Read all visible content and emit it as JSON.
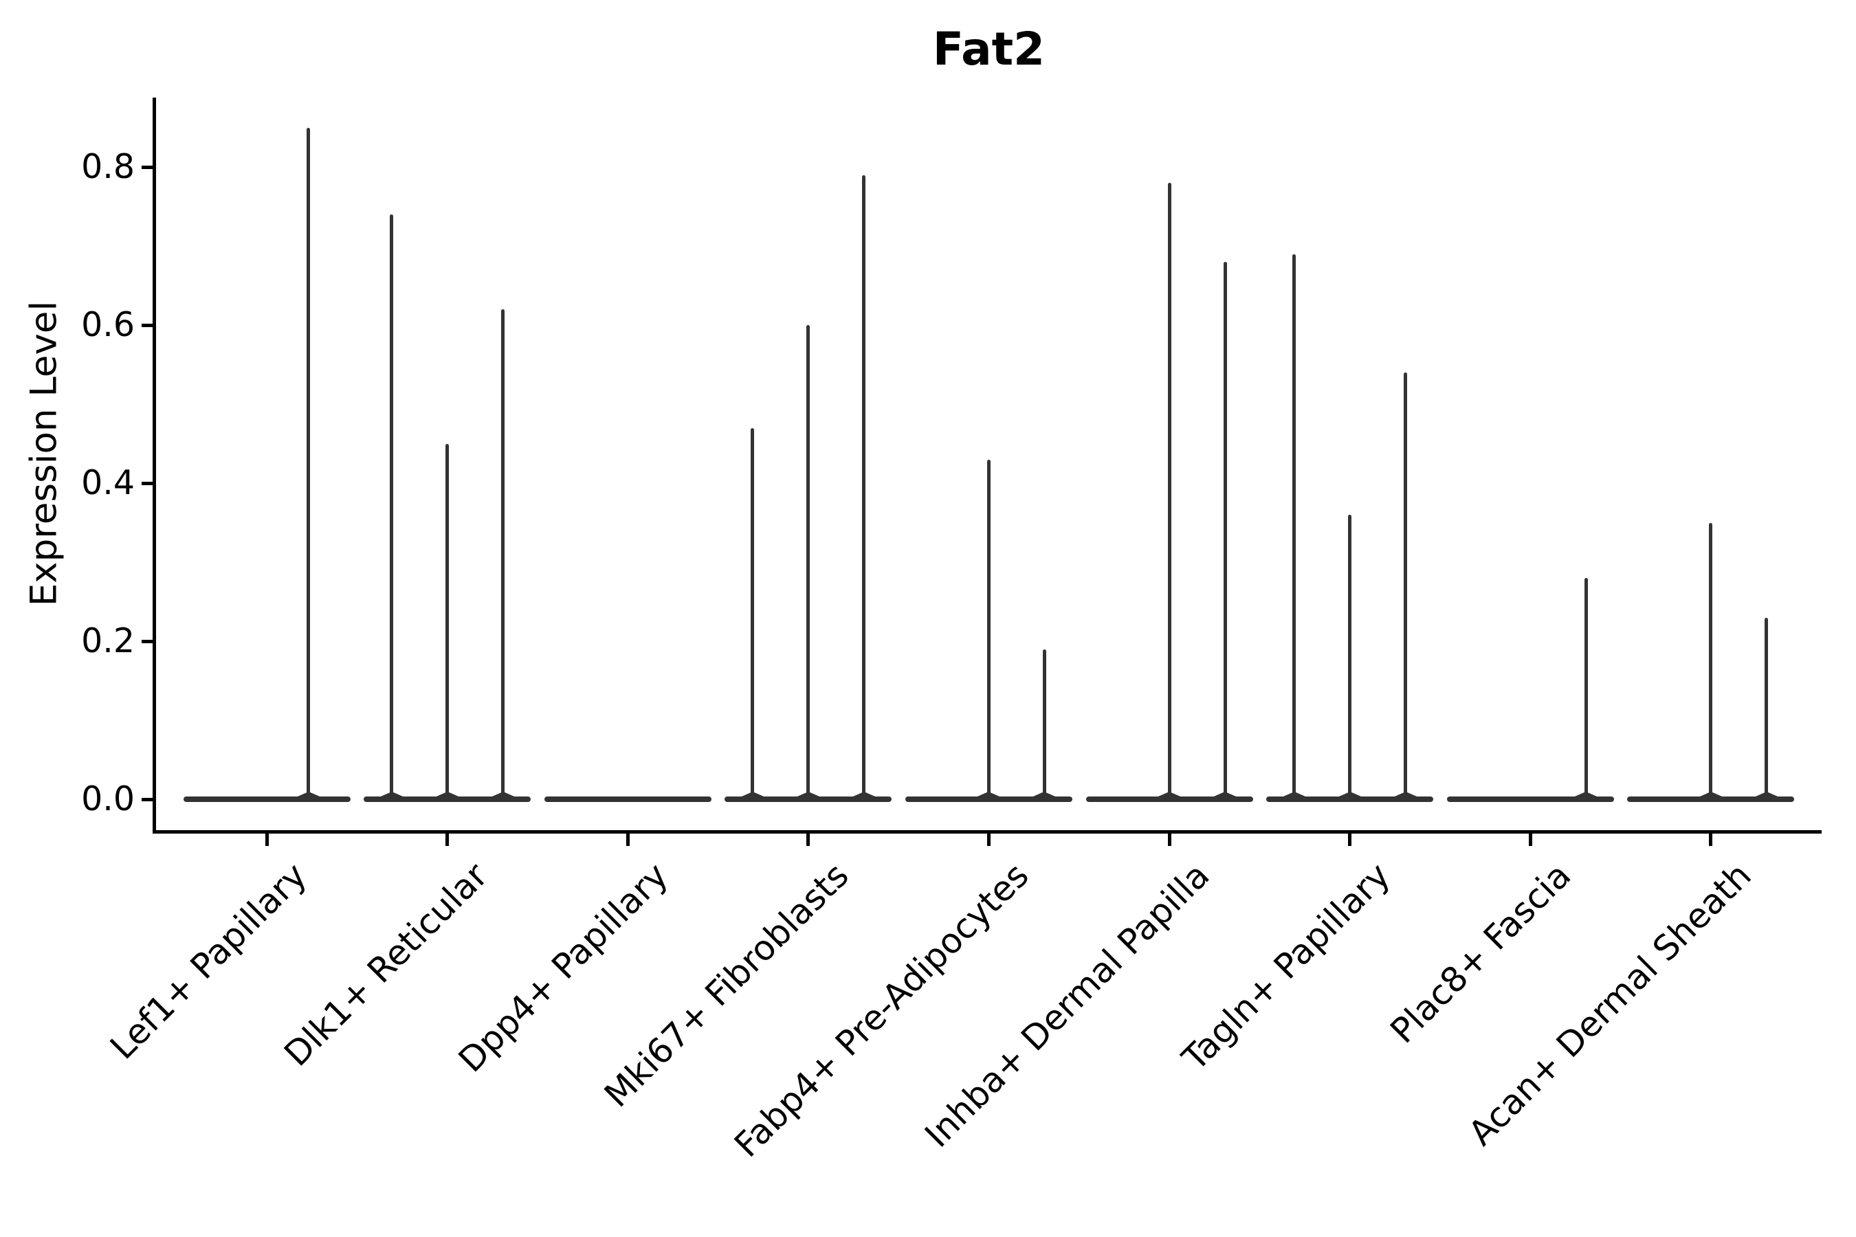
{
  "chart_data": {
    "type": "violin",
    "title": "Fat2",
    "xlabel": "",
    "ylabel": "Expression Level",
    "categories": [
      "Lef1+ Papillary",
      "Dlk1+ Reticular",
      "Dpp4+ Papillary",
      "Mki67+ Fibroblasts",
      "Fabp4+ Pre-Adipocytes",
      "Inhba+ Dermal Papilla",
      "Tagln+ Papillary",
      "Plac8+ Fascia",
      "Acan+ Dermal Sheath"
    ],
    "group_max_expression_per_category": [
      [
        0,
        0.85
      ],
      [
        0.74,
        0.45,
        0.62
      ],
      [
        0,
        0,
        0
      ],
      [
        0.47,
        0.6,
        0.79
      ],
      [
        0,
        0.43,
        0.19
      ],
      [
        0,
        0.78,
        0.68
      ],
      [
        0.69,
        0.36,
        0.54
      ],
      [
        0,
        0,
        0.28
      ],
      [
        0,
        0.35,
        0.23
      ]
    ],
    "ytick_labels": [
      "0.0",
      "0.2",
      "0.4",
      "0.6",
      "0.8"
    ],
    "ytick_values": [
      0,
      0.2,
      0.4,
      0.6,
      0.8
    ],
    "ylim": [
      -0.04,
      0.89
    ],
    "grid": false,
    "legend": "none",
    "x_tick_rotation_deg": 45,
    "colors": {
      "violin": "#333333",
      "axis": "#000000",
      "text": "#000000",
      "background": "#ffffff"
    }
  }
}
